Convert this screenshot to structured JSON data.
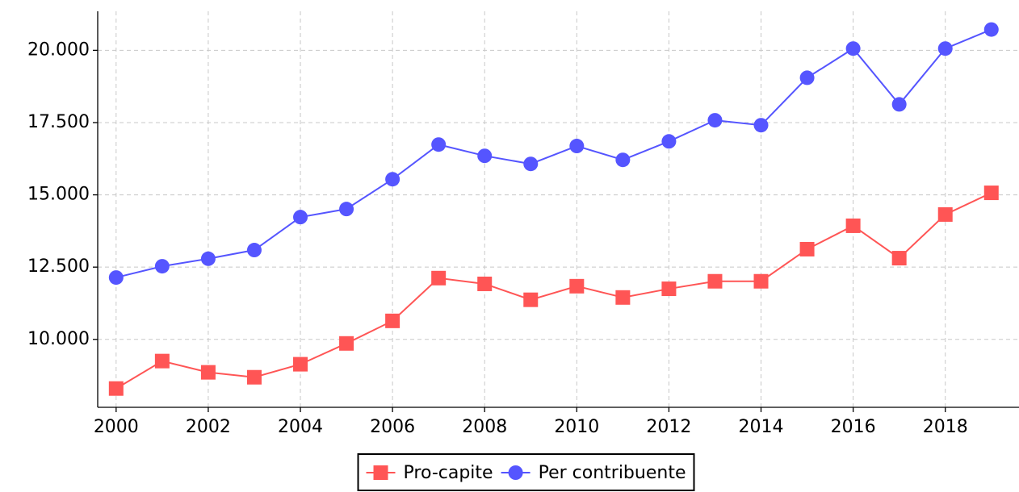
{
  "chart_data": {
    "type": "line",
    "x": [
      2000,
      2001,
      2002,
      2003,
      2004,
      2005,
      2006,
      2007,
      2008,
      2009,
      2010,
      2011,
      2012,
      2013,
      2014,
      2015,
      2016,
      2017,
      2018,
      2019
    ],
    "series": [
      {
        "name": "Pro-capite",
        "color": "#ff5555",
        "marker": "square",
        "values": [
          8300,
          9250,
          8860,
          8690,
          9140,
          9860,
          10640,
          12120,
          11920,
          11370,
          11840,
          11450,
          11750,
          12010,
          12010,
          13120,
          13930,
          12810,
          14320,
          15070
        ]
      },
      {
        "name": "Per contribuente",
        "color": "#5555ff",
        "marker": "circle",
        "values": [
          12140,
          12530,
          12790,
          13090,
          14230,
          14510,
          15540,
          16740,
          16350,
          16070,
          16690,
          16210,
          16850,
          17580,
          17410,
          19050,
          20060,
          18130,
          20060,
          20720
        ]
      }
    ],
    "xlim": [
      1999.6,
      2019.6
    ],
    "xticks": [
      2000,
      2002,
      2004,
      2006,
      2008,
      2010,
      2012,
      2014,
      2016,
      2018
    ],
    "ylim": [
      7650,
      21350
    ],
    "yticks": [
      {
        "value": 10000,
        "label": "10.000"
      },
      {
        "value": 12500,
        "label": "12.500"
      },
      {
        "value": 15000,
        "label": "15.000"
      },
      {
        "value": 17500,
        "label": "17.500"
      },
      {
        "value": 20000,
        "label": "20.000"
      }
    ],
    "grid": true,
    "legend": "bottom"
  }
}
